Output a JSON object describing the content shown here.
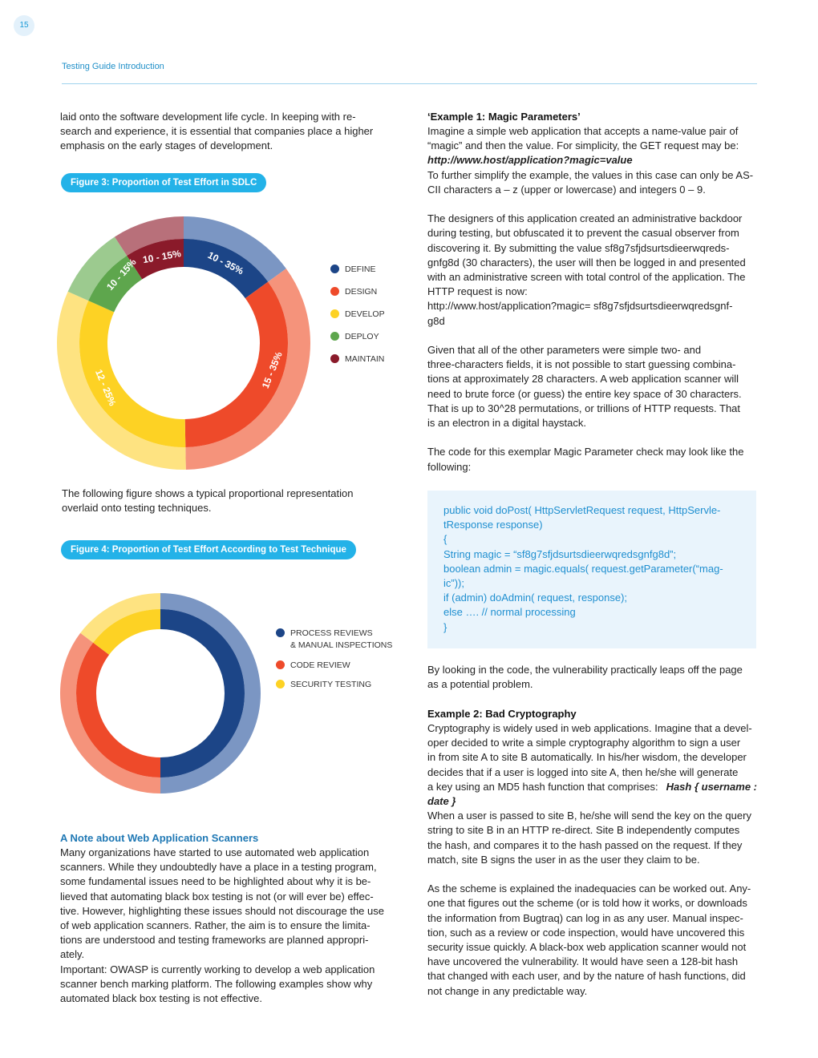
{
  "page_number": "15",
  "running_header": "Testing Guide Introduction",
  "left": {
    "intro_lines": [
      "laid onto the software development life cycle. In keeping with re-",
      "search and experience, it is essential that companies place a higher",
      "emphasis on the early stages of development."
    ],
    "figure3_title": "Figure 3: Proportion of Test Effort in SDLC",
    "figure3_legend": [
      {
        "label": "DEFINE",
        "color": "#1c4587"
      },
      {
        "label": "DESIGN",
        "color": "#ee4a2a"
      },
      {
        "label": "DEVELOP",
        "color": "#fdd224"
      },
      {
        "label": "DEPLOY",
        "color": "#5ea64d"
      },
      {
        "label": "MAINTAIN",
        "color": "#8a1a2a"
      }
    ],
    "figure3_segment_labels": [
      "10 - 35%",
      "15 - 35%",
      "12 - 25%",
      "10 - 15%",
      "10 - 15%"
    ],
    "between_lines": [
      "The following figure shows a typical proportional representation",
      "overlaid onto testing techniques."
    ],
    "figure4_title": "Figure 4: Proportion of Test Effort According to Test Technique",
    "figure4_legend": [
      {
        "label": "PROCESS REVIEWS",
        "label2": "& MANUAL INSPECTIONS",
        "color": "#1c4587"
      },
      {
        "label": "CODE REVIEW",
        "label2": "",
        "color": "#ee4a2a"
      },
      {
        "label": "SECURITY TESTING",
        "label2": "",
        "color": "#fdd224"
      }
    ],
    "note_heading": "A Note about Web Application Scanners",
    "note_lines": [
      "Many organizations have started to use automated web application",
      "scanners. While they undoubtedly have a place in a testing program,",
      "some fundamental issues need to be highlighted about why it is be-",
      "lieved that automating black box testing is not (or will ever be) effec-",
      "tive. However, highlighting these issues should not discourage the use",
      "of web application scanners. Rather, the aim is to ensure the limita-",
      "tions are understood and testing frameworks are planned appropri-",
      "ately.",
      "Important: OWASP is currently working to develop a web application",
      "scanner bench marking platform. The following examples show why",
      "automated black box testing is not effective."
    ]
  },
  "right": {
    "ex1_heading": "‘Example 1: Magic Parameters’",
    "ex1_p1_lines": [
      "Imagine a simple web application that accepts a name-value pair of",
      "“magic” and then the value. For simplicity, the GET request may be:"
    ],
    "ex1_url": "http://www.host/application?magic=value",
    "ex1_p1b_lines": [
      "To further simplify the example, the values in this case can only be AS-",
      "CII characters a – z (upper or lowercase) and integers 0 – 9."
    ],
    "ex1_p2_lines": [
      "The designers of this application created an administrative backdoor",
      "during testing, but obfuscated it to prevent the casual observer from",
      "discovering it. By submitting the value sf8g7sfjdsurtsdieerwqreds-",
      "gnfg8d (30 characters), the user will then be logged in and presented",
      "with an administrative screen with total control of the application. The",
      "HTTP request is now:",
      "http://www.host/application?magic= sf8g7sfjdsurtsdieerwqredsgnf-",
      "g8d"
    ],
    "ex1_p3_lines": [
      "Given that all of the other parameters were simple two- and",
      "three-characters fields, it is not possible to start guessing combina-",
      "tions at approximately 28 characters. A web application scanner will",
      "need to brute force (or guess) the entire key space of 30 characters.",
      "That is up to 30^28 permutations, or trillions of HTTP requests. That",
      "is an electron in a digital haystack."
    ],
    "ex1_p4_lines": [
      "The code for this exemplar Magic Parameter check may look like the",
      "following:"
    ],
    "code_lines": [
      "public void doPost( HttpServletRequest request, HttpServle-",
      "tResponse response)",
      "{",
      "String magic = “sf8g7sfjdsurtsdieerwqredsgnfg8d”;",
      "boolean admin = magic.equals( request.getParameter(“mag-",
      "ic”));",
      "if (admin) doAdmin( request, response);",
      "else …. // normal processing",
      "}"
    ],
    "ex1_p5_lines": [
      "By looking in the code, the vulnerability practically leaps off the page",
      "as a potential problem."
    ],
    "ex2_heading": "Example 2: Bad Cryptography",
    "ex2_p1_lines": [
      "Cryptography is widely used in web applications. Imagine that a devel-",
      "oper decided to write a simple cryptography algorithm to sign a user",
      "in from site A to site B automatically. In his/her wisdom, the developer",
      "decides that if a user is logged into site A, then he/she will generate"
    ],
    "ex2_p1_last": "a key using an MD5 hash function that comprises:",
    "ex2_hash": "Hash { username :",
    "ex2_hash2": "date }",
    "ex2_p2_lines": [
      "When a user is passed to site B, he/she will send the key on the query",
      "string to site B in an HTTP re-direct. Site B independently computes",
      "the hash, and compares it to the hash passed on the request. If they",
      "match, site B signs the user in as the user they claim to be."
    ],
    "ex2_p3_lines": [
      "As the scheme is explained the inadequacies can be worked out. Any-",
      "one that figures out the scheme (or is told how it works, or downloads",
      "the information from Bugtraq) can log in as any user. Manual inspec-",
      "tion, such as a review or code inspection, would have uncovered this",
      "security issue quickly. A black-box web application scanner would not",
      "have uncovered the vulnerability. It would have seen a 128-bit hash",
      "that changed with each user, and by the nature of hash functions, did",
      "not change in any predictable way."
    ]
  }
}
